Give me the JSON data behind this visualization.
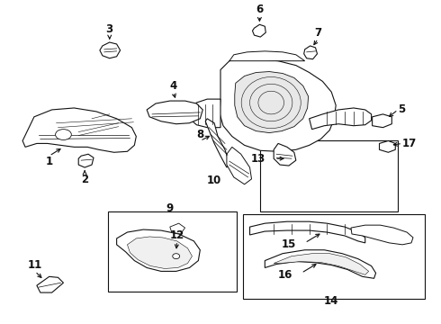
{
  "bg_color": "#ffffff",
  "line_color": "#111111",
  "fig_width": 4.9,
  "fig_height": 3.6,
  "dpi": 100,
  "label_font_size": 8.5,
  "label_font_weight": "bold"
}
